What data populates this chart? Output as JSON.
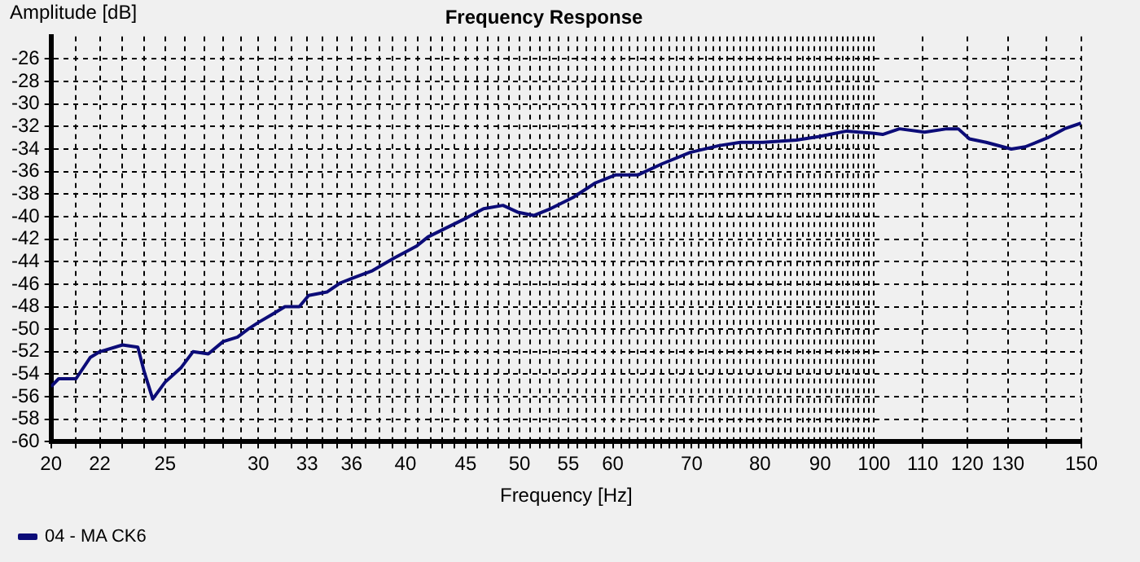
{
  "chart_data": {
    "type": "line",
    "title": "Frequency Response",
    "xlabel": "Frequency [Hz]",
    "ylabel": "Amplitude [dB]",
    "log": "x",
    "grid": true,
    "legend": "bottom left",
    "marker": "none",
    "line_style": "solid",
    "xlim": [
      20,
      150
    ],
    "ylim": [
      -60,
      -24
    ],
    "xticks": [
      20,
      {
        "value": 21,
        "label": null
      },
      22,
      {
        "value": 23,
        "label": null
      },
      {
        "value": 24,
        "label": null
      },
      25,
      {
        "value": 26,
        "label": null
      },
      {
        "value": 27,
        "label": null
      },
      {
        "value": 28,
        "label": null
      },
      {
        "value": 29,
        "label": null
      },
      30,
      {
        "value": 31,
        "label": null
      },
      {
        "value": 32,
        "label": null
      },
      33,
      {
        "value": 34,
        "label": null
      },
      {
        "value": 35,
        "label": null
      },
      36,
      {
        "value": 37,
        "label": null
      },
      {
        "value": 38,
        "label": null
      },
      {
        "value": 39,
        "label": null
      },
      40,
      {
        "value": 41,
        "label": null
      },
      {
        "value": 42,
        "label": null
      },
      {
        "value": 43,
        "label": null
      },
      {
        "value": 44,
        "label": null
      },
      45,
      {
        "value": 46,
        "label": null
      },
      {
        "value": 47,
        "label": null
      },
      {
        "value": 48,
        "label": null
      },
      {
        "value": 49,
        "label": null
      },
      50,
      {
        "value": 51,
        "label": null
      },
      {
        "value": 52,
        "label": null
      },
      {
        "value": 53,
        "label": null
      },
      {
        "value": 54,
        "label": null
      },
      55,
      {
        "value": 56,
        "label": null
      },
      {
        "value": 57,
        "label": null
      },
      {
        "value": 58,
        "label": null
      },
      {
        "value": 59,
        "label": null
      },
      60,
      {
        "value": 61,
        "label": null
      },
      {
        "value": 62,
        "label": null
      },
      {
        "value": 63,
        "label": null
      },
      {
        "value": 64,
        "label": null
      },
      {
        "value": 65,
        "label": null
      },
      {
        "value": 66,
        "label": null
      },
      {
        "value": 67,
        "label": null
      },
      {
        "value": 68,
        "label": null
      },
      {
        "value": 69,
        "label": null
      },
      70,
      {
        "value": 71,
        "label": null
      },
      {
        "value": 72,
        "label": null
      },
      {
        "value": 73,
        "label": null
      },
      {
        "value": 74,
        "label": null
      },
      {
        "value": 75,
        "label": null
      },
      {
        "value": 76,
        "label": null
      },
      {
        "value": 77,
        "label": null
      },
      {
        "value": 78,
        "label": null
      },
      {
        "value": 79,
        "label": null
      },
      80,
      {
        "value": 81,
        "label": null
      },
      {
        "value": 82,
        "label": null
      },
      {
        "value": 83,
        "label": null
      },
      {
        "value": 84,
        "label": null
      },
      {
        "value": 85,
        "label": null
      },
      {
        "value": 86,
        "label": null
      },
      {
        "value": 87,
        "label": null
      },
      {
        "value": 88,
        "label": null
      },
      {
        "value": 89,
        "label": null
      },
      90,
      {
        "value": 91,
        "label": null
      },
      {
        "value": 92,
        "label": null
      },
      {
        "value": 93,
        "label": null
      },
      {
        "value": 94,
        "label": null
      },
      {
        "value": 95,
        "label": null
      },
      {
        "value": 96,
        "label": null
      },
      {
        "value": 97,
        "label": null
      },
      {
        "value": 98,
        "label": null
      },
      {
        "value": 99,
        "label": null
      },
      100,
      110,
      120,
      130,
      {
        "value": 140,
        "label": null
      },
      150
    ],
    "yticks": [
      -60,
      -58,
      -56,
      -54,
      -52,
      -50,
      -48,
      -46,
      -44,
      -42,
      -40,
      -38,
      -36,
      -34,
      -32,
      -30,
      -28,
      -26
    ],
    "x": [
      20,
      20.3,
      21,
      21.6,
      22,
      23,
      23.7,
      24,
      24.4,
      25,
      25.8,
      26.4,
      27.2,
      28,
      28.8,
      29.4,
      30,
      30.8,
      31.6,
      32.5,
      33.1,
      34.3,
      35.2,
      36.2,
      37.5,
      39.1,
      40.9,
      41.8,
      45.1,
      46.6,
      48.4,
      49.8,
      51.4,
      53.1,
      55.5,
      58,
      60.3,
      63,
      66.1,
      69.8,
      73.8,
      77,
      80.5,
      85.9,
      89.7,
      94.8,
      100.1,
      101.7,
      105.1,
      110.4,
      115.3,
      117.9,
      120.5,
      124.5,
      130.8,
      134.4,
      140.4,
      145.1,
      149.9
    ],
    "series": [
      {
        "name": "04 - MA CK6",
        "color": "#0c0c78",
        "values": [
          -55.1,
          -54.4,
          -54.4,
          -52.5,
          -52.0,
          -51.4,
          -51.6,
          -53.8,
          -56.2,
          -54.7,
          -53.4,
          -52.0,
          -52.2,
          -51.1,
          -50.7,
          -50.0,
          -49.4,
          -48.7,
          -48.0,
          -48.0,
          -47.0,
          -46.7,
          -45.9,
          -45.4,
          -44.8,
          -43.7,
          -42.6,
          -41.8,
          -40.1,
          -39.3,
          -39.0,
          -39.6,
          -39.9,
          -39.3,
          -38.3,
          -37.0,
          -36.3,
          -36.3,
          -35.3,
          -34.3,
          -33.7,
          -33.4,
          -33.4,
          -33.2,
          -32.9,
          -32.4,
          -32.6,
          -32.7,
          -32.2,
          -32.5,
          -32.2,
          -32.2,
          -33.1,
          -33.4,
          -34.0,
          -33.8,
          -33.0,
          -32.2,
          -31.7
        ]
      }
    ]
  }
}
